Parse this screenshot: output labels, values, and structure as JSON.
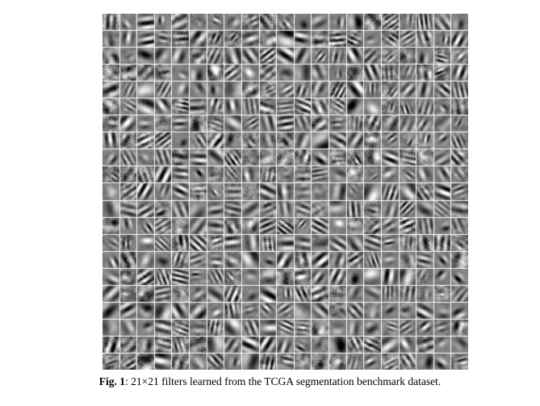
{
  "figure": {
    "grid_rows": 21,
    "grid_cols": 21,
    "tile_background": "#ffffff",
    "content_description": "tiled grayscale learned filter patches"
  },
  "caption": {
    "label": "Fig. 1",
    "separator": ": ",
    "dims": "21×21",
    "text": " filters learned from the TCGA segmentation benchmark dataset."
  }
}
